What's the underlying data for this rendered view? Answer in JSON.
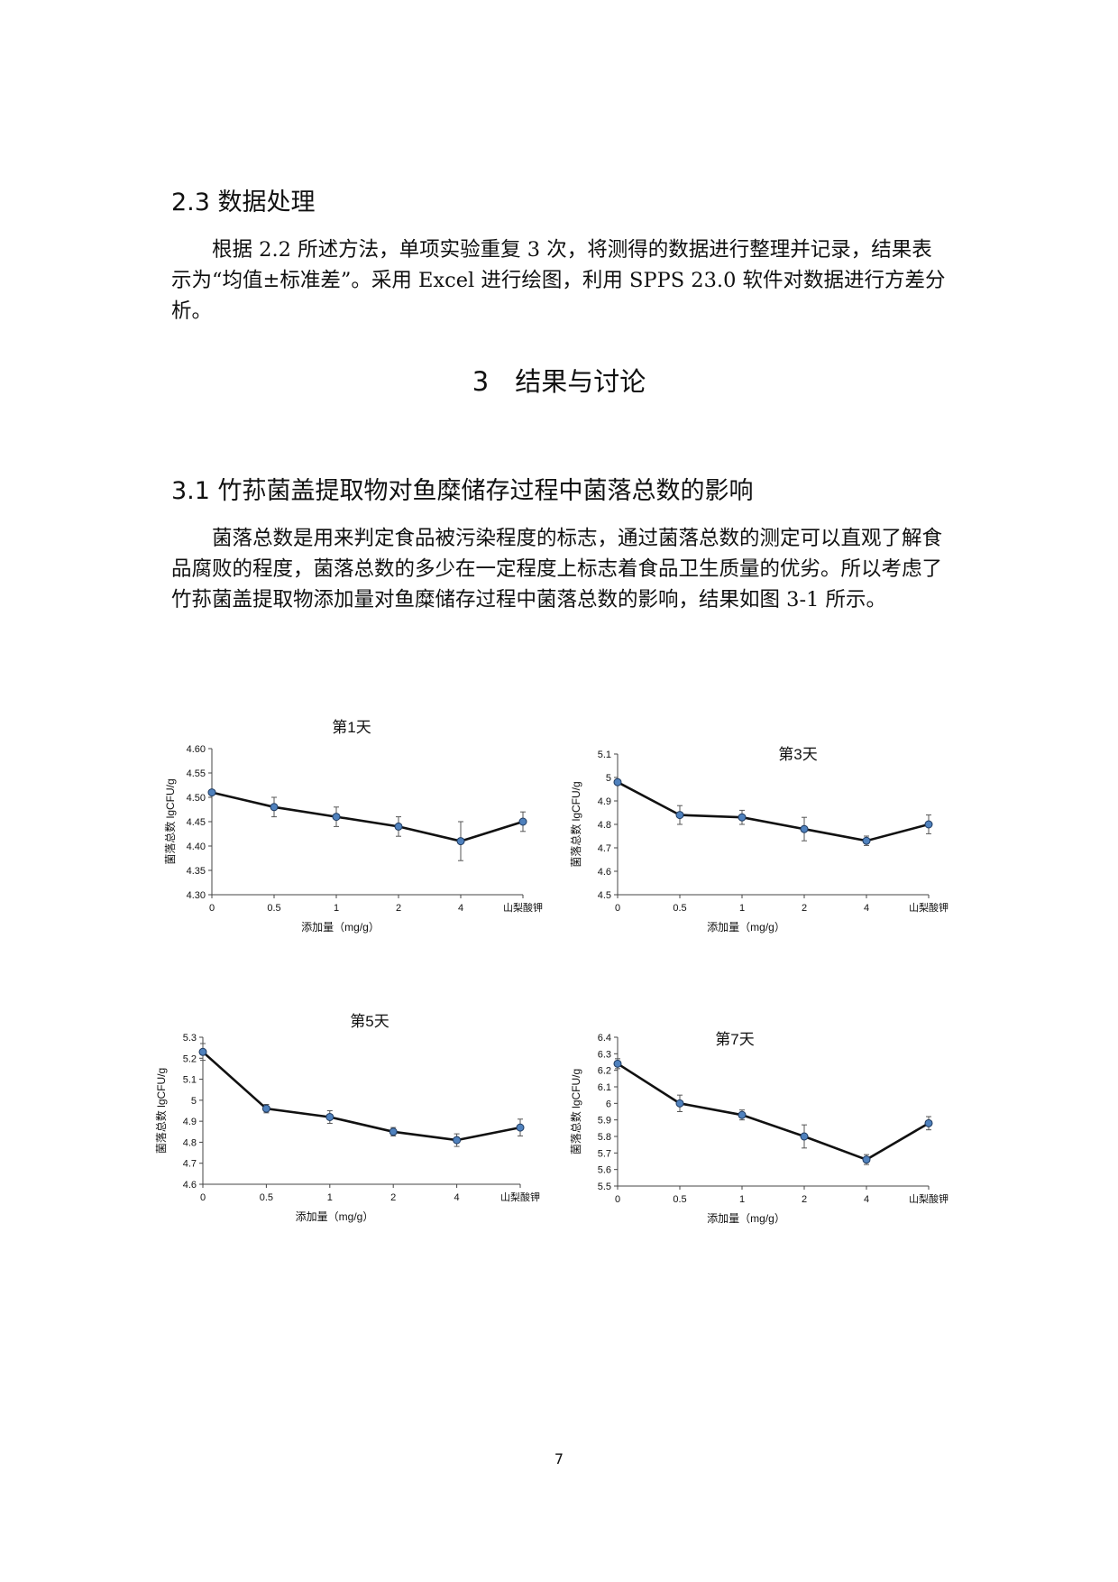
{
  "section_2_3": {
    "heading": "2.3 数据处理",
    "paragraph": "根据 2.2 所述方法，单项实验重复 3 次，将测得的数据进行整理并记录，结果表示为“均值±标准差”。采用 Excel 进行绘图，利用 SPPS 23.0 软件对数据进行方差分析。"
  },
  "chapter_3": {
    "heading": "3　结果与讨论"
  },
  "section_3_1": {
    "heading": "3.1 竹荪菌盖提取物对鱼糜储存过程中菌落总数的影响",
    "paragraph": "菌落总数是用来判定食品被污染程度的标志，通过菌落总数的测定可以直观了解食品腐败的程度，菌落总数的多少在一定程度上标志着食品卫生质量的优劣。所以考虑了竹荪菌盖提取物添加量对鱼糜储存过程中菌落总数的影响，结果如图 3-1 所示。"
  },
  "chart_data": [
    {
      "type": "line",
      "title": "第1天",
      "xlabel": "添加量（mg/g）",
      "ylabel": "菌落总数 lgCFU/g",
      "categories": [
        "0",
        "0.5",
        "1",
        "2",
        "4",
        "山梨酸钾"
      ],
      "values": [
        4.51,
        4.48,
        4.46,
        4.44,
        4.41,
        4.45
      ],
      "errors": [
        0.005,
        0.02,
        0.02,
        0.02,
        0.04,
        0.02
      ],
      "ylim": [
        4.3,
        4.6
      ],
      "yticks": [
        "4.30",
        "4.35",
        "4.40",
        "4.45",
        "4.50",
        "4.55",
        "4.60"
      ],
      "color": "#4f81bd"
    },
    {
      "type": "line",
      "title": "第3天",
      "xlabel": "添加量（mg/g）",
      "ylabel": "菌落总数 lgCFU/g",
      "categories": [
        "0",
        "0.5",
        "1",
        "2",
        "4",
        "山梨酸钾"
      ],
      "values": [
        4.98,
        4.84,
        4.83,
        4.78,
        4.73,
        4.8
      ],
      "errors": [
        0.005,
        0.04,
        0.03,
        0.05,
        0.02,
        0.04
      ],
      "ylim": [
        4.5,
        5.1
      ],
      "yticks": [
        "4.5",
        "4.6",
        "4.7",
        "4.8",
        "4.9",
        "5",
        "5.1"
      ],
      "color": "#4f81bd"
    },
    {
      "type": "line",
      "title": "第5天",
      "xlabel": "添加量（mg/g）",
      "ylabel": "菌落总数 lgCFU/g",
      "categories": [
        "0",
        "0.5",
        "1",
        "2",
        "4",
        "山梨酸钾"
      ],
      "values": [
        5.23,
        4.96,
        4.92,
        4.85,
        4.81,
        4.87
      ],
      "errors": [
        0.04,
        0.02,
        0.03,
        0.02,
        0.03,
        0.04
      ],
      "ylim": [
        4.6,
        5.3
      ],
      "yticks": [
        "4.6",
        "4.7",
        "4.8",
        "4.9",
        "5",
        "5.1",
        "5.2",
        "5.3"
      ],
      "color": "#4f81bd"
    },
    {
      "type": "line",
      "title": "第7天",
      "xlabel": "添加量（mg/g）",
      "ylabel": "菌落总数 lgCFU/g",
      "categories": [
        "0",
        "0.5",
        "1",
        "2",
        "4",
        "山梨酸钾"
      ],
      "values": [
        6.24,
        6.0,
        5.93,
        5.8,
        5.66,
        5.88
      ],
      "errors": [
        0.03,
        0.05,
        0.03,
        0.07,
        0.03,
        0.04
      ],
      "ylim": [
        5.5,
        6.4
      ],
      "yticks": [
        "5.5",
        "5.6",
        "5.7",
        "5.8",
        "5.9",
        "6",
        "6.1",
        "6.2",
        "6.3",
        "6.4"
      ],
      "color": "#4f81bd"
    }
  ],
  "page_number": "7"
}
